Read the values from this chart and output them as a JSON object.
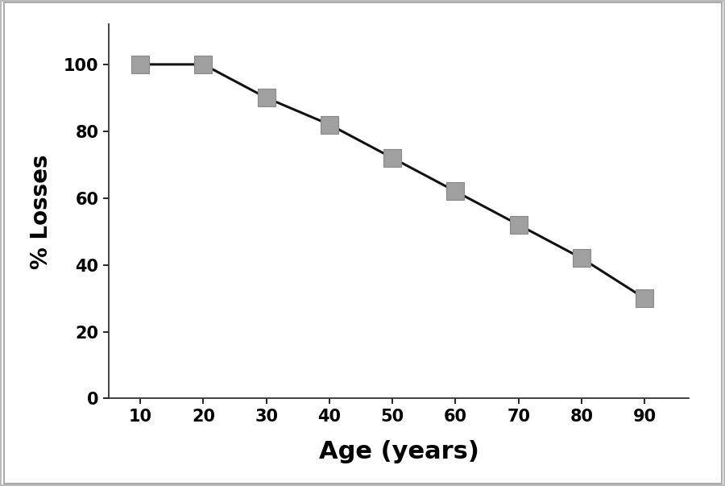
{
  "x": [
    10,
    20,
    30,
    40,
    50,
    60,
    70,
    80,
    90
  ],
  "y": [
    100,
    100,
    90,
    82,
    72,
    62,
    52,
    42,
    30
  ],
  "line_color": "#111111",
  "marker_color": "#a0a0a0",
  "marker_edge_color": "#888888",
  "marker_style": "s",
  "marker_size": 16,
  "line_width": 2.2,
  "xlabel": "Age (years)",
  "ylabel": "% Losses",
  "xlabel_fontsize": 22,
  "ylabel_fontsize": 20,
  "tick_fontsize": 15,
  "xlim": [
    5,
    97
  ],
  "ylim": [
    0,
    112
  ],
  "xticks": [
    10,
    20,
    30,
    40,
    50,
    60,
    70,
    80,
    90
  ],
  "yticks": [
    0,
    20,
    40,
    60,
    80,
    100
  ],
  "figure_background": "#ffffff",
  "axes_background": "#ffffff",
  "border_color": "#bbbbbb"
}
